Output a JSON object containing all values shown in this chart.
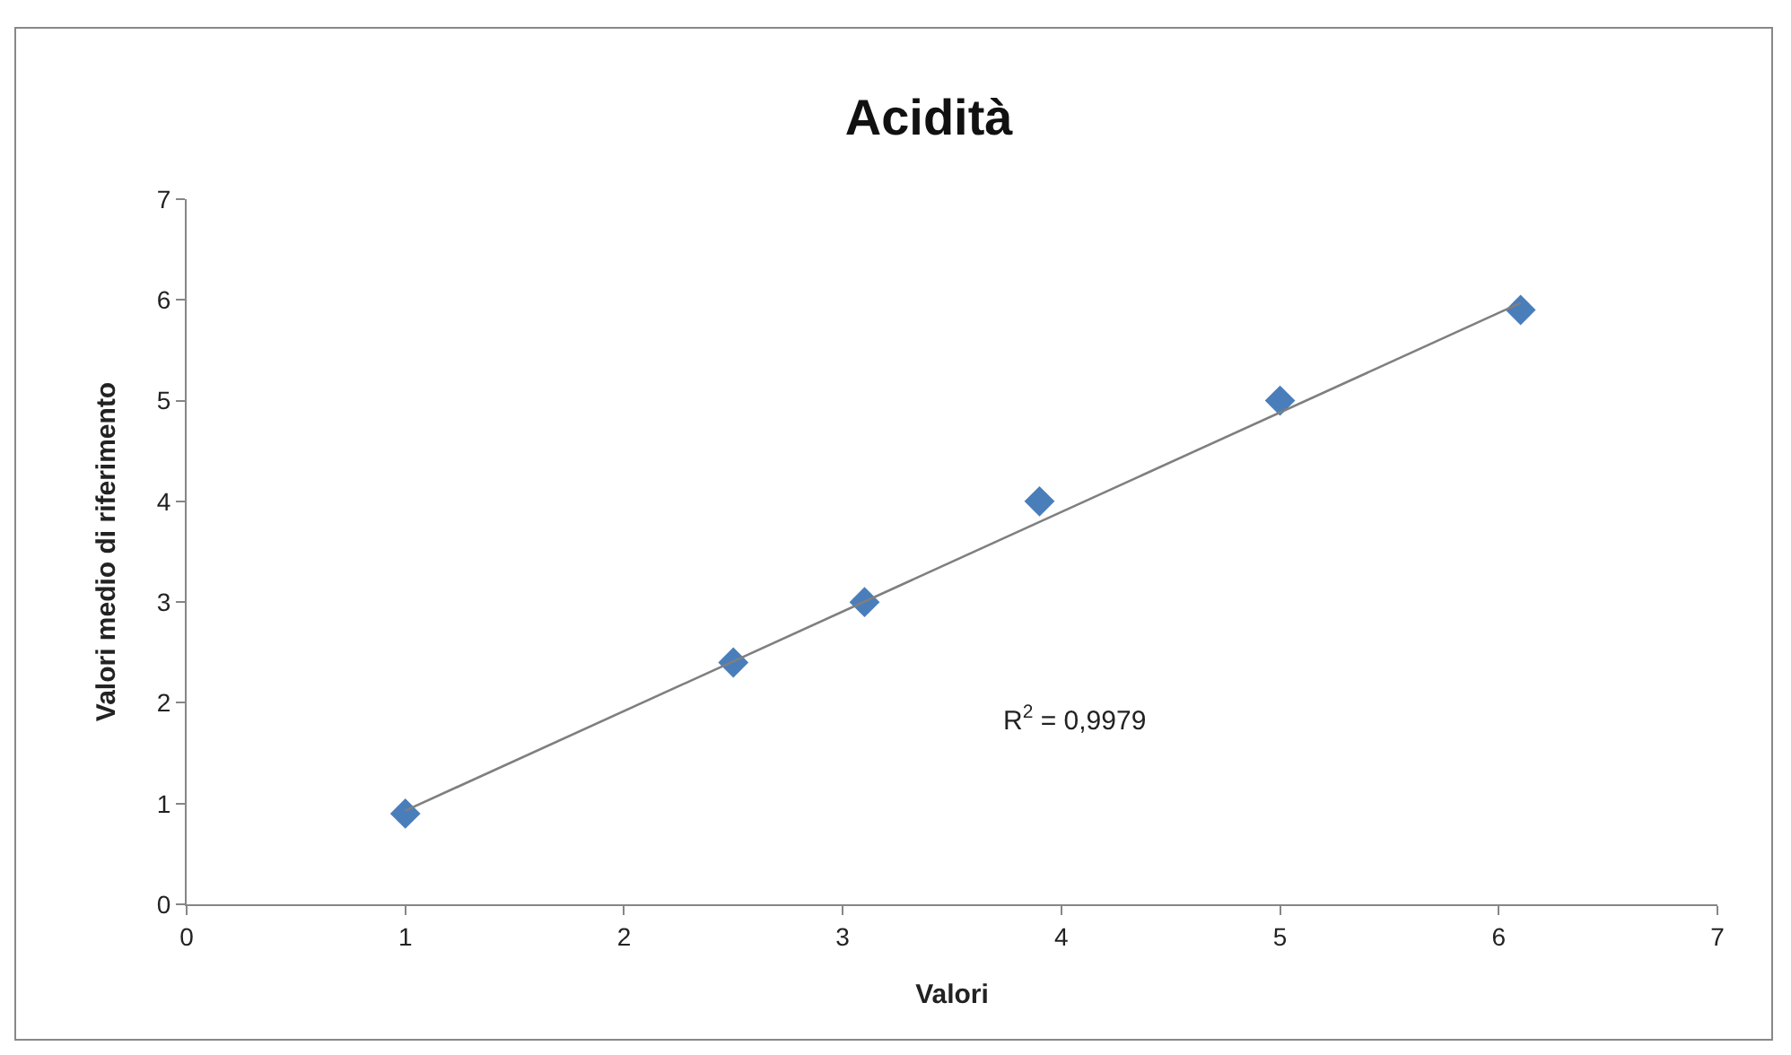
{
  "chart_data": {
    "type": "scatter",
    "title": "Acidità",
    "xlabel": "Valori",
    "ylabel": "Valori medio di riferimento",
    "xlim": [
      0,
      7
    ],
    "xticks": [
      0,
      1,
      2,
      3,
      4,
      5,
      6,
      7
    ],
    "ylim": [
      0,
      7
    ],
    "yticks": [
      0,
      1,
      2,
      3,
      4,
      5,
      6,
      7
    ],
    "grid": false,
    "marker": "diamond",
    "series": [
      {
        "color": "#4a7ebb",
        "x": [
          1,
          2.5,
          3.1,
          3.9,
          5,
          6.1
        ],
        "values": [
          0.9,
          2.4,
          3.0,
          4.0,
          5.0,
          5.9
        ]
      },
      {
        "type": "line",
        "color": "#7f7f7f",
        "marker": "none",
        "line_style": "solid",
        "x": [
          1,
          6.1
        ],
        "values": [
          0.93,
          5.97
        ]
      }
    ],
    "annotations": [
      "R$^{2}$ = 0,9979"
    ]
  }
}
